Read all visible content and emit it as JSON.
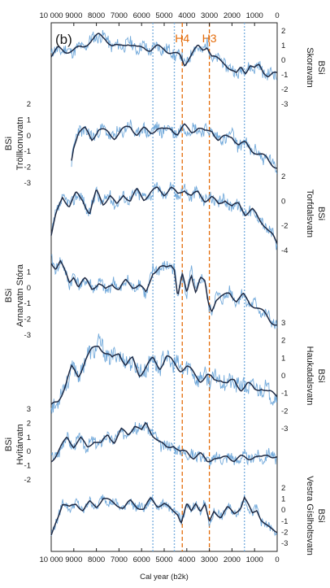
{
  "chart_data": {
    "type": "line",
    "panel_label": "(b)",
    "xlabel": "Cal year (b2k)",
    "xlim": [
      10000,
      0
    ],
    "x_ticks": [
      "10 000",
      "9000",
      "8000",
      "7000",
      "6000",
      "5000",
      "4000",
      "3000",
      "2000",
      "1000",
      "0"
    ],
    "reference_lines": [
      {
        "x": 5500,
        "color": "#7fb2e0",
        "style": "dotted"
      },
      {
        "x": 4550,
        "color": "#7fb2e0",
        "style": "dotted"
      },
      {
        "x": 1450,
        "color": "#7fb2e0",
        "style": "dotted"
      },
      {
        "x": 4200,
        "label": "H4",
        "color": "#e46c0a",
        "style": "dashed"
      },
      {
        "x": 3000,
        "label": "H3",
        "color": "#e46c0a",
        "style": "dashed"
      }
    ],
    "colors": {
      "raw": "#5b9bd5",
      "smoothed": "#1f2a44",
      "ref_blue": "#7fb2e0",
      "ref_orange": "#e46c0a"
    },
    "records": [
      {
        "label": "BSi",
        "site": "Skoravatn",
        "axis_side": "right",
        "y_ticks": [
          "2",
          "1",
          "0",
          "-1",
          "-2",
          "-3"
        ],
        "ylim": [
          -3,
          2
        ],
        "x_start": 10000,
        "x_end": 0,
        "knots": [
          [
            10000,
            0.3
          ],
          [
            9700,
            0.8
          ],
          [
            9400,
            0.6
          ],
          [
            9000,
            0.7
          ],
          [
            8600,
            0.9
          ],
          [
            8200,
            1.4
          ],
          [
            7900,
            1.7
          ],
          [
            7600,
            1.5
          ],
          [
            7300,
            1.0
          ],
          [
            7000,
            0.9
          ],
          [
            6600,
            1.2
          ],
          [
            6200,
            0.8
          ],
          [
            5900,
            0.9
          ],
          [
            5600,
            0.7
          ],
          [
            5300,
            0.9
          ],
          [
            5000,
            0.8
          ],
          [
            4800,
            0.6
          ],
          [
            4500,
            0.4
          ],
          [
            4300,
            0.3
          ],
          [
            4100,
            -0.3
          ],
          [
            3900,
            0.2
          ],
          [
            3700,
            0.6
          ],
          [
            3500,
            0.9
          ],
          [
            3300,
            0.7
          ],
          [
            3100,
            1.0
          ],
          [
            2900,
            0.3
          ],
          [
            2600,
            0.0
          ],
          [
            2300,
            -0.2
          ],
          [
            2000,
            -0.7
          ],
          [
            1800,
            -1.0
          ],
          [
            1600,
            -0.5
          ],
          [
            1400,
            -0.8
          ],
          [
            1200,
            -0.3
          ],
          [
            1000,
            -0.6
          ],
          [
            800,
            -0.4
          ],
          [
            600,
            -0.8
          ],
          [
            400,
            -1.0
          ],
          [
            200,
            -0.9
          ],
          [
            0,
            -1.0
          ]
        ]
      },
      {
        "label": "BSi",
        "site": "Tröllkonuvatn",
        "axis_side": "left",
        "y_ticks": [
          "2",
          "1",
          "0",
          "-1",
          "-2",
          "-3"
        ],
        "ylim": [
          -3,
          2
        ],
        "x_start": 9100,
        "x_end": 0,
        "knots": [
          [
            9100,
            -1.5
          ],
          [
            9000,
            -0.6
          ],
          [
            8800,
            0.2
          ],
          [
            8500,
            0.4
          ],
          [
            8200,
            -0.2
          ],
          [
            7900,
            0.4
          ],
          [
            7500,
            0.2
          ],
          [
            7200,
            -0.1
          ],
          [
            6900,
            0.3
          ],
          [
            6500,
            0.6
          ],
          [
            6200,
            0.1
          ],
          [
            5900,
            0.4
          ],
          [
            5600,
            0.2
          ],
          [
            5300,
            0.5
          ],
          [
            5000,
            0.3
          ],
          [
            4700,
            0.5
          ],
          [
            4400,
            0.1
          ],
          [
            4100,
            0.6
          ],
          [
            3800,
            0.3
          ],
          [
            3500,
            0.5
          ],
          [
            3200,
            0.2
          ],
          [
            2900,
            0.4
          ],
          [
            2600,
            -0.3
          ],
          [
            2300,
            -0.1
          ],
          [
            2000,
            0.0
          ],
          [
            1700,
            -0.6
          ],
          [
            1400,
            -0.5
          ],
          [
            1100,
            -0.9
          ],
          [
            800,
            -1.2
          ],
          [
            500,
            -1.4
          ],
          [
            200,
            -1.8
          ],
          [
            0,
            -2.0
          ]
        ]
      },
      {
        "label": "BSi",
        "site": "Torfdalsvatn",
        "axis_side": "right",
        "y_ticks": [
          "2",
          "0",
          "-2",
          "-4"
        ],
        "ylim": [
          -4,
          2
        ],
        "x_start": 10000,
        "x_end": 0,
        "knots": [
          [
            10000,
            -2.8
          ],
          [
            9800,
            -1.2
          ],
          [
            9500,
            0.4
          ],
          [
            9200,
            -0.4
          ],
          [
            8900,
            0.6
          ],
          [
            8600,
            0.1
          ],
          [
            8300,
            -1.0
          ],
          [
            8000,
            0.8
          ],
          [
            7700,
            -0.2
          ],
          [
            7400,
            0.5
          ],
          [
            7100,
            -0.4
          ],
          [
            6800,
            0.6
          ],
          [
            6500,
            0.0
          ],
          [
            6200,
            0.9
          ],
          [
            5900,
            0.2
          ],
          [
            5600,
            0.7
          ],
          [
            5300,
            1.0
          ],
          [
            5000,
            0.6
          ],
          [
            4700,
            1.1
          ],
          [
            4400,
            0.5
          ],
          [
            4100,
            1.0
          ],
          [
            3800,
            0.4
          ],
          [
            3500,
            0.7
          ],
          [
            3200,
            0.1
          ],
          [
            2900,
            0.3
          ],
          [
            2600,
            -0.3
          ],
          [
            2300,
            0.2
          ],
          [
            2000,
            -0.5
          ],
          [
            1700,
            -0.2
          ],
          [
            1400,
            -1.0
          ],
          [
            1100,
            -0.7
          ],
          [
            800,
            -1.5
          ],
          [
            500,
            -2.0
          ],
          [
            200,
            -2.8
          ],
          [
            0,
            -3.6
          ]
        ]
      },
      {
        "label": "BSi",
        "site": "Arnarvatn Stóra",
        "axis_side": "left",
        "y_ticks": [
          "1",
          "0",
          "-1",
          "-2",
          "-3"
        ],
        "ylim": [
          -3,
          2
        ],
        "x_start": 10000,
        "x_end": 0,
        "knots": [
          [
            10000,
            1.6
          ],
          [
            9800,
            1.3
          ],
          [
            9600,
            1.7
          ],
          [
            9400,
            1.0
          ],
          [
            9200,
            0.3
          ],
          [
            9000,
            0.8
          ],
          [
            8800,
            0.1
          ],
          [
            8500,
            0.5
          ],
          [
            8200,
            0.0
          ],
          [
            7900,
            0.3
          ],
          [
            7600,
            -0.2
          ],
          [
            7300,
            0.3
          ],
          [
            7000,
            -0.1
          ],
          [
            6700,
            0.4
          ],
          [
            6400,
            0.1
          ],
          [
            6100,
            0.2
          ],
          [
            5800,
            -0.4
          ],
          [
            5500,
            1.0
          ],
          [
            5200,
            1.3
          ],
          [
            4900,
            1.2
          ],
          [
            4700,
            1.5
          ],
          [
            4550,
            1.3
          ],
          [
            4400,
            -0.5
          ],
          [
            4200,
            0.8
          ],
          [
            4000,
            -0.4
          ],
          [
            3800,
            0.9
          ],
          [
            3600,
            -0.2
          ],
          [
            3400,
            0.6
          ],
          [
            3200,
            0.3
          ],
          [
            3050,
            -1.0
          ],
          [
            2900,
            -1.4
          ],
          [
            2700,
            -0.7
          ],
          [
            2400,
            -0.6
          ],
          [
            2100,
            -0.3
          ],
          [
            1800,
            -0.8
          ],
          [
            1500,
            -0.5
          ],
          [
            1200,
            -1.0
          ],
          [
            900,
            -1.2
          ],
          [
            600,
            -1.6
          ],
          [
            300,
            -2.1
          ],
          [
            0,
            -2.3
          ]
        ]
      },
      {
        "label": "BSi",
        "site": "Haukadalsvatn",
        "axis_side": "right",
        "y_ticks": [
          "3",
          "2",
          "1",
          "0",
          "-1",
          "-2",
          "-3"
        ],
        "ylim": [
          -3,
          3
        ],
        "x_start": 10000,
        "x_end": 0,
        "knots": [
          [
            10000,
            -1.8
          ],
          [
            9700,
            -1.4
          ],
          [
            9400,
            -0.6
          ],
          [
            9100,
            0.4
          ],
          [
            8800,
            0.0
          ],
          [
            8500,
            0.9
          ],
          [
            8200,
            1.4
          ],
          [
            7900,
            1.8
          ],
          [
            7600,
            1.3
          ],
          [
            7300,
            0.9
          ],
          [
            7000,
            1.4
          ],
          [
            6700,
            0.6
          ],
          [
            6400,
            0.9
          ],
          [
            6100,
            0.1
          ],
          [
            5800,
            0.5
          ],
          [
            5500,
            0.9
          ],
          [
            5200,
            0.5
          ],
          [
            4900,
            1.1
          ],
          [
            4600,
            0.7
          ],
          [
            4300,
            0.4
          ],
          [
            4000,
            0.5
          ],
          [
            3700,
            0.1
          ],
          [
            3400,
            -0.2
          ],
          [
            3100,
            0.0
          ],
          [
            2800,
            -0.3
          ],
          [
            2500,
            -0.1
          ],
          [
            2200,
            -0.5
          ],
          [
            1900,
            -0.3
          ],
          [
            1600,
            -0.7
          ],
          [
            1300,
            -0.5
          ],
          [
            1000,
            -0.8
          ],
          [
            700,
            -0.6
          ],
          [
            400,
            -1.0
          ],
          [
            0,
            -1.1
          ]
        ]
      },
      {
        "label": "BSi",
        "site": "Hvítárvatn",
        "axis_side": "left",
        "y_ticks": [
          "3",
          "2",
          "1",
          "0",
          "-1",
          "-2"
        ],
        "ylim": [
          -2,
          3
        ],
        "x_start": 10000,
        "x_end": 0,
        "knots": [
          [
            10000,
            -0.6
          ],
          [
            9800,
            -0.3
          ],
          [
            9600,
            0.2
          ],
          [
            9300,
            1.0
          ],
          [
            9000,
            0.4
          ],
          [
            8700,
            0.9
          ],
          [
            8400,
            0.3
          ],
          [
            8100,
            0.8
          ],
          [
            7800,
            0.5
          ],
          [
            7500,
            1.2
          ],
          [
            7200,
            0.7
          ],
          [
            6900,
            1.5
          ],
          [
            6600,
            1.2
          ],
          [
            6300,
            1.9
          ],
          [
            6000,
            1.4
          ],
          [
            5800,
            2.0
          ],
          [
            5500,
            1.2
          ],
          [
            5200,
            0.6
          ],
          [
            4900,
            0.3
          ],
          [
            4600,
            0.5
          ],
          [
            4300,
            -0.1
          ],
          [
            4000,
            0.0
          ],
          [
            3700,
            -0.4
          ],
          [
            3400,
            -0.2
          ],
          [
            3100,
            -0.7
          ],
          [
            2800,
            -0.4
          ],
          [
            2500,
            -0.6
          ],
          [
            2200,
            -0.3
          ],
          [
            1900,
            -0.6
          ],
          [
            1600,
            -0.4
          ],
          [
            1300,
            -0.5
          ],
          [
            1000,
            -0.3
          ],
          [
            700,
            -0.5
          ],
          [
            400,
            -0.2
          ],
          [
            0,
            -0.4
          ]
        ]
      },
      {
        "label": "BSi",
        "site": "Vestra Gíslholtsvatn",
        "axis_side": "right",
        "y_ticks": [
          "2",
          "1",
          "0",
          "-1",
          "-2",
          "-3"
        ],
        "ylim": [
          -3,
          2
        ],
        "x_start": 10000,
        "x_end": 0,
        "knots": [
          [
            10000,
            -2.4
          ],
          [
            9800,
            -1.1
          ],
          [
            9500,
            0.6
          ],
          [
            9200,
            0.2
          ],
          [
            8900,
            0.6
          ],
          [
            8600,
            0.0
          ],
          [
            8300,
            0.7
          ],
          [
            8000,
            0.3
          ],
          [
            7700,
            1.1
          ],
          [
            7400,
            0.8
          ],
          [
            7100,
            0.5
          ],
          [
            6800,
            0.2
          ],
          [
            6500,
            0.8
          ],
          [
            6200,
            0.3
          ],
          [
            5900,
            0.1
          ],
          [
            5600,
            1.0
          ],
          [
            5300,
            0.4
          ],
          [
            5000,
            0.6
          ],
          [
            4700,
            0.0
          ],
          [
            4400,
            -0.3
          ],
          [
            4250,
            -1.1
          ],
          [
            4000,
            0.5
          ],
          [
            3800,
            -0.2
          ],
          [
            3600,
            0.7
          ],
          [
            3400,
            0.0
          ],
          [
            3200,
            0.5
          ],
          [
            3000,
            -1.2
          ],
          [
            2800,
            -0.1
          ],
          [
            2500,
            -0.6
          ],
          [
            2200,
            0.2
          ],
          [
            1900,
            -0.3
          ],
          [
            1600,
            0.3
          ],
          [
            1450,
            1.1
          ],
          [
            1300,
            0.5
          ],
          [
            1100,
            -0.3
          ],
          [
            900,
            0.1
          ],
          [
            700,
            -0.9
          ],
          [
            500,
            -1.4
          ],
          [
            300,
            -1.7
          ],
          [
            0,
            -1.9
          ]
        ]
      }
    ]
  }
}
